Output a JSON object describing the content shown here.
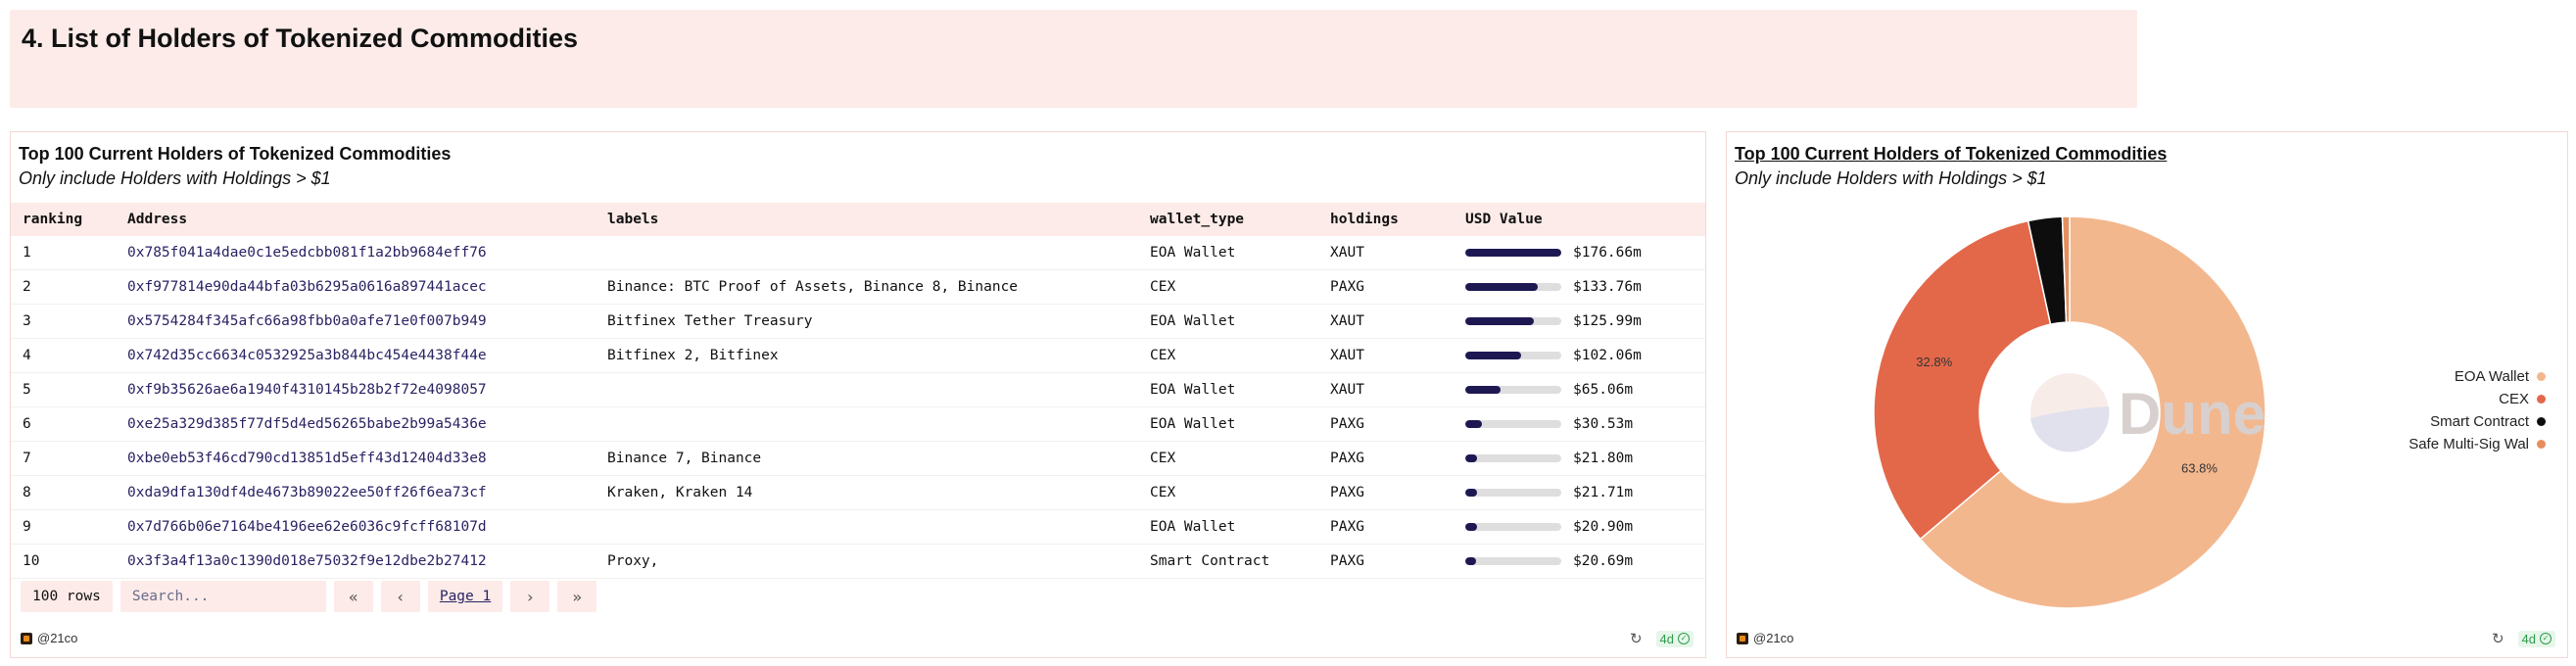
{
  "section": {
    "title": "4. List of Holders of Tokenized Commodities"
  },
  "table_panel": {
    "title": "Top 100 Current Holders of Tokenized Commodities",
    "subtitle": "Only include Holders with Holdings > $1",
    "columns": [
      "ranking",
      "Address",
      "labels",
      "wallet_type",
      "holdings",
      "USD Value"
    ],
    "rows": [
      {
        "ranking": "1",
        "address": "0x785f041a4dae0c1e5edcbb081f1a2bb9684eff76",
        "labels": "",
        "wallet_type": "EOA Wallet",
        "holdings": "XAUT",
        "usd": "$176.66m",
        "usd_value": 176.66
      },
      {
        "ranking": "2",
        "address": "0xf977814e90da44bfa03b6295a0616a897441acec",
        "labels": "Binance: BTC Proof of Assets, Binance 8, Binance",
        "wallet_type": "CEX",
        "holdings": "PAXG",
        "usd": "$133.76m",
        "usd_value": 133.76
      },
      {
        "ranking": "3",
        "address": "0x5754284f345afc66a98fbb0a0afe71e0f007b949",
        "labels": "Bitfinex Tether Treasury",
        "wallet_type": "EOA Wallet",
        "holdings": "XAUT",
        "usd": "$125.99m",
        "usd_value": 125.99
      },
      {
        "ranking": "4",
        "address": "0x742d35cc6634c0532925a3b844bc454e4438f44e",
        "labels": "Bitfinex 2, Bitfinex",
        "wallet_type": "CEX",
        "holdings": "XAUT",
        "usd": "$102.06m",
        "usd_value": 102.06
      },
      {
        "ranking": "5",
        "address": "0xf9b35626ae6a1940f4310145b28b2f72e4098057",
        "labels": "",
        "wallet_type": "EOA Wallet",
        "holdings": "XAUT",
        "usd": "$65.06m",
        "usd_value": 65.06
      },
      {
        "ranking": "6",
        "address": "0xe25a329d385f77df5d4ed56265babe2b99a5436e",
        "labels": "",
        "wallet_type": "EOA Wallet",
        "holdings": "PAXG",
        "usd": "$30.53m",
        "usd_value": 30.53
      },
      {
        "ranking": "7",
        "address": "0xbe0eb53f46cd790cd13851d5eff43d12404d33e8",
        "labels": "Binance 7, Binance",
        "wallet_type": "CEX",
        "holdings": "PAXG",
        "usd": "$21.80m",
        "usd_value": 21.8
      },
      {
        "ranking": "8",
        "address": "0xda9dfa130df4de4673b89022ee50ff26f6ea73cf",
        "labels": "Kraken, Kraken 14",
        "wallet_type": "CEX",
        "holdings": "PAXG",
        "usd": "$21.71m",
        "usd_value": 21.71
      },
      {
        "ranking": "9",
        "address": "0x7d766b06e7164be4196ee62e6036c9fcff68107d",
        "labels": "",
        "wallet_type": "EOA Wallet",
        "holdings": "PAXG",
        "usd": "$20.90m",
        "usd_value": 20.9
      },
      {
        "ranking": "10",
        "address": "0x3f3a4f13a0c1390d018e75032f9e12dbe2b27412",
        "labels": "Proxy,",
        "wallet_type": "Smart Contract",
        "holdings": "PAXG",
        "usd": "$20.69m",
        "usd_value": 20.69
      }
    ],
    "pager": {
      "rows_label": "100 rows",
      "search_placeholder": "Search...",
      "page_label": "Page 1"
    },
    "owner": "@21co",
    "age": "4d"
  },
  "chart_panel": {
    "title": "Top 100 Current Holders of Tokenized Commodities",
    "subtitle": "Only include Holders with Holdings > $1",
    "owner": "@21co",
    "age": "4d",
    "watermark": "Dune"
  },
  "chart_data": {
    "type": "pie",
    "donut": true,
    "legend_position": "right",
    "slices": [
      {
        "name": "EOA Wallet",
        "value": 63.8,
        "label": "63.8%",
        "color": "#f3b78e"
      },
      {
        "name": "CEX",
        "value": 32.8,
        "label": "32.8%",
        "color": "#e3684a"
      },
      {
        "name": "Smart Contract",
        "value": 2.8,
        "label": "",
        "color": "#0d0d0d"
      },
      {
        "name": "Safe Multi-Sig Wal",
        "value": 0.6,
        "label": "",
        "color": "#e58f5e"
      }
    ]
  },
  "colors": {
    "header_bg": "#fcebe8",
    "bar_fill": "#1e1852",
    "bar_track": "#dedede",
    "address": "#2a2363"
  },
  "icons": [
    "chevrons-left-icon",
    "chevron-left-icon",
    "chevron-right-icon",
    "chevrons-right-icon",
    "refresh-icon",
    "check-circle-icon",
    "dune-logo-icon"
  ]
}
